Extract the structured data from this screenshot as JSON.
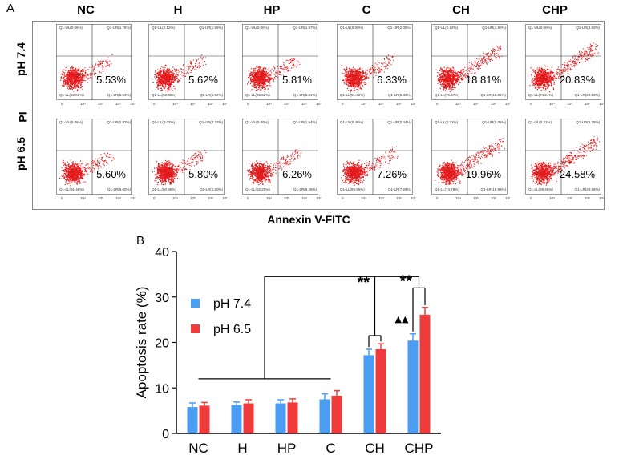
{
  "panel_a": {
    "letter": "A",
    "columns": [
      "NC",
      "H",
      "HP",
      "C",
      "CH",
      "CHP"
    ],
    "rows": [
      "pH 7.4",
      "pH 6.5"
    ],
    "y_axis_label": "PI",
    "x_axis_label": "Annexin V-FITC",
    "tick_labels": [
      "0",
      "10⁴",
      "10⁵",
      "10⁶",
      "10⁷"
    ],
    "plots": [
      [
        {
          "pct": "5.53%",
          "ul": "Q1-UL(0.06%)",
          "ur": "Q1-UR(1.76%)",
          "ll": "Q1-LL(92.66%)",
          "lr": "Q1-LR(5.53%)",
          "spread": 0.25
        },
        {
          "pct": "5.62%",
          "ul": "Q1-UL(0.12%)",
          "ur": "Q1-UR(1.96%)",
          "ll": "Q1-LL(92.30%)",
          "lr": "Q1-LR(5.62%)",
          "spread": 0.25
        },
        {
          "pct": "5.81%",
          "ul": "Q1-UL(0.00%)",
          "ur": "Q1-UR(1.57%)",
          "ll": "Q1-LL(92.62%)",
          "lr": "Q1-LR(5.81%)",
          "spread": 0.25
        },
        {
          "pct": "6.33%",
          "ul": "Q1-UL(0.00%)",
          "ur": "Q1-UR(2.05%)",
          "ll": "Q1-LL(91.63%)",
          "lr": "Q1-LR(6.33%)",
          "spread": 0.3
        },
        {
          "pct": "18.81%",
          "ul": "Q1-UL(0.12%)",
          "ur": "Q1-UR(4.60%)",
          "ll": "Q1-LL(76.47%)",
          "lr": "Q1-LR(18.81%)",
          "spread": 0.7
        },
        {
          "pct": "20.83%",
          "ul": "Q1-UL(0.00%)",
          "ur": "Q1-UR(4.93%)",
          "ll": "Q1-LL(74.24%)",
          "lr": "Q1-LR(20.83%)",
          "spread": 0.8
        }
      ],
      [
        {
          "pct": "5.60%",
          "ul": "Q1-UL(0.05%)",
          "ur": "Q1-UR(2.87%)",
          "ll": "Q1-LL(91.48%)",
          "lr": "Q1-LR(5.60%)",
          "spread": 0.25
        },
        {
          "pct": "5.80%",
          "ul": "Q1-UL(0.03%)",
          "ur": "Q1-UR(3.22%)",
          "ll": "Q1-LL(90.96%)",
          "lr": "Q1-LR(5.80%)",
          "spread": 0.28
        },
        {
          "pct": "6.26%",
          "ul": "Q1-UL(0.00%)",
          "ur": "Q1-UR(1.54%)",
          "ll": "Q1-LL(92.20%)",
          "lr": "Q1-LR(6.26%)",
          "spread": 0.3
        },
        {
          "pct": "7.26%",
          "ul": "Q1-UL(0.46%)",
          "ur": "Q1-UR(2.44%)",
          "ll": "Q1-LL(89.85%)",
          "lr": "Q1-LR(7.26%)",
          "spread": 0.35
        },
        {
          "pct": "19.96%",
          "ul": "Q1-UL(0.21%)",
          "ur": "Q1-UR(5.05%)",
          "ll": "Q1-LL(74.78%)",
          "lr": "Q1-LR(19.96%)",
          "spread": 0.75
        },
        {
          "pct": "24.58%",
          "ul": "Q1-UL(0.21%)",
          "ur": "Q1-UR(5.75%)",
          "ll": "Q1-LL(69.46%)",
          "lr": "Q1-LR(24.58%)",
          "spread": 0.85
        }
      ]
    ]
  },
  "chart_data": {
    "type": "bar",
    "panel_letter": "B",
    "title": "",
    "xlabel": "",
    "ylabel": "Apoptosis rate (%)",
    "ylim": [
      0,
      40
    ],
    "yticks": [
      "0",
      "10",
      "20",
      "30",
      "40"
    ],
    "categories": [
      "NC",
      "H",
      "HP",
      "C",
      "CH",
      "CHP"
    ],
    "series": [
      {
        "name": "pH 7.4",
        "color": "#4a9df0",
        "values": [
          5.8,
          6.2,
          6.6,
          7.5,
          17.2,
          20.4
        ],
        "errors": [
          0.9,
          0.7,
          0.8,
          1.2,
          1.3,
          1.5
        ]
      },
      {
        "name": "pH 6.5",
        "color": "#ef3b3b",
        "values": [
          6.1,
          6.6,
          6.8,
          8.3,
          18.5,
          26.1
        ],
        "errors": [
          0.7,
          0.8,
          0.8,
          1.1,
          1.2,
          1.6
        ]
      }
    ],
    "annotations": {
      "sig1": "**",
      "sig2": "**",
      "triangles": "▲▲"
    }
  }
}
